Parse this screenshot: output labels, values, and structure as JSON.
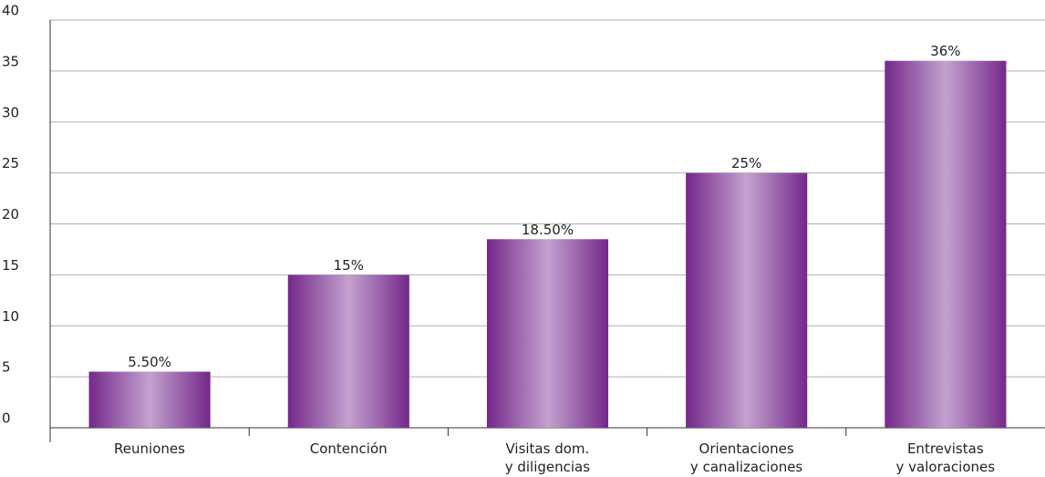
{
  "chart_data": {
    "type": "bar",
    "categories": [
      "Reuniones",
      "Contención",
      "Visitas dom.\ny diligencias",
      "Orientaciones\ny canalizaciones",
      "Entrevistas\ny valoraciones"
    ],
    "values": [
      5.5,
      15,
      18.5,
      25,
      36
    ],
    "value_labels": [
      "5.50%",
      "15%",
      "18.50%",
      "25%",
      "36%"
    ],
    "color": "#7b2d8e",
    "ylim": [
      0,
      40
    ],
    "yticks": [
      0,
      5,
      10,
      15,
      20,
      25,
      30,
      35,
      40
    ],
    "grid": true
  }
}
